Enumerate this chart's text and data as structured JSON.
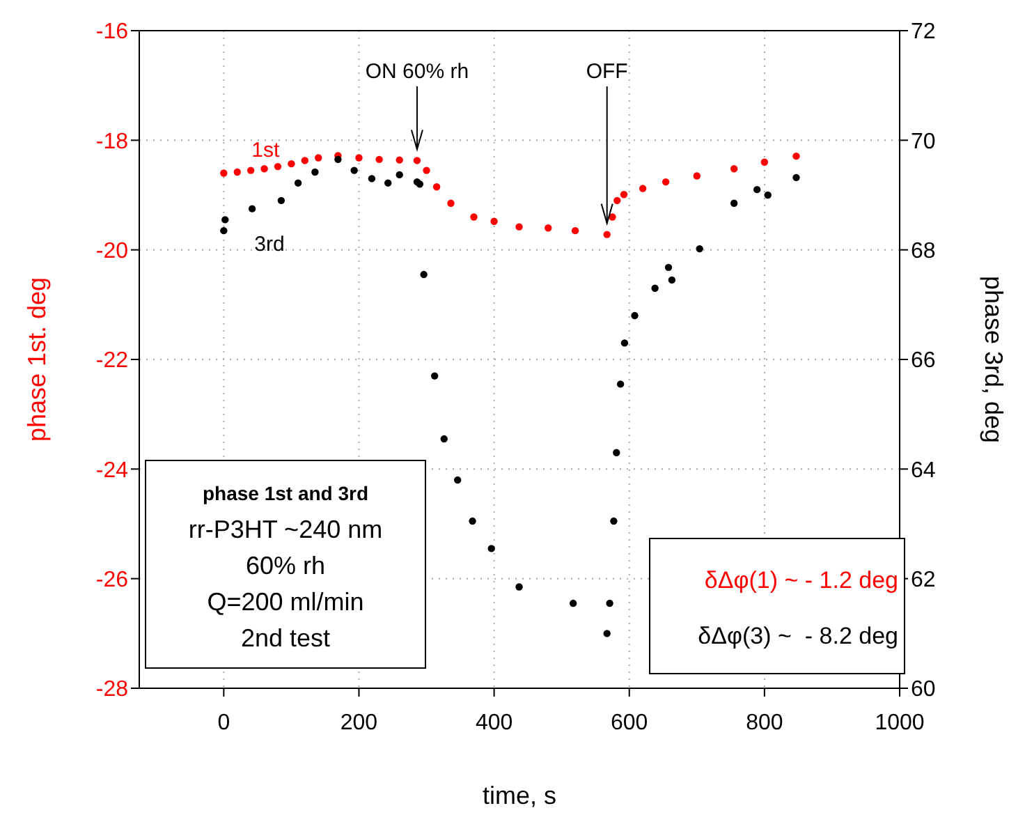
{
  "chart_data": {
    "type": "scatter",
    "xlabel": "time, s",
    "ylabel": "phase 1st. deg",
    "y2label": "phase 3rd, deg",
    "xlim": [
      -125,
      1000
    ],
    "xticks": [
      0,
      200,
      400,
      600,
      800,
      1000
    ],
    "ylim": [
      -28,
      -16
    ],
    "yticks": [
      -28,
      -26,
      -24,
      -22,
      -20,
      -18,
      -16
    ],
    "y2lim": [
      60,
      72
    ],
    "y2ticks": [
      60,
      62,
      64,
      66,
      68,
      70,
      72
    ],
    "grid": true,
    "legend": false,
    "marker": "circle",
    "series": [
      {
        "name": "1st",
        "color": "#ff0000",
        "x": [
          0,
          20,
          40,
          60,
          80,
          100,
          120,
          140,
          169,
          200,
          230,
          260,
          286,
          300,
          315,
          336,
          370,
          400,
          437,
          480,
          520,
          567,
          575,
          582,
          592,
          620,
          654,
          700,
          755,
          800,
          847
        ],
        "values": [
          -18.6,
          -18.58,
          -18.55,
          -18.52,
          -18.48,
          -18.43,
          -18.37,
          -18.32,
          -18.28,
          -18.32,
          -18.35,
          -18.36,
          -18.37,
          -18.55,
          -18.85,
          -19.15,
          -19.4,
          -19.48,
          -19.58,
          -19.6,
          -19.65,
          -19.72,
          -19.4,
          -19.1,
          -18.99,
          -18.88,
          -18.76,
          -18.65,
          -18.52,
          -18.4,
          -18.29
        ]
      },
      {
        "name": "3rd",
        "color": "#000000",
        "axis": "y2",
        "x": [
          0,
          2,
          42,
          85,
          110,
          135,
          169,
          193,
          219,
          243,
          260,
          286,
          290,
          296,
          312,
          326,
          346,
          368,
          396,
          437,
          517,
          567,
          571,
          577,
          581,
          587,
          593,
          608,
          638,
          658,
          663,
          704,
          755,
          789,
          805,
          847
        ],
        "values": [
          68.35,
          68.55,
          68.75,
          68.9,
          69.22,
          69.42,
          69.65,
          69.45,
          69.3,
          69.22,
          69.37,
          69.24,
          69.2,
          67.55,
          65.7,
          64.55,
          63.8,
          63.05,
          62.55,
          61.85,
          61.55,
          61.0,
          61.55,
          63.05,
          64.3,
          65.55,
          66.3,
          66.8,
          67.3,
          67.68,
          67.45,
          68.02,
          68.85,
          69.1,
          69.0,
          69.32
        ]
      }
    ],
    "annotations": [
      {
        "text": "ON 60% rh",
        "x": 286,
        "y": -18.37
      },
      {
        "text": "OFF",
        "x": 567,
        "y": -19.72
      },
      "phase 1st and 3rd",
      "rr-P3HT ~240 nm",
      "60% rh",
      "Q=200 ml/min",
      "2nd test",
      "δΔφ(1) ~ - 1.2 deg",
      "δΔφ(3) ~  - 8.2 deg"
    ]
  }
}
